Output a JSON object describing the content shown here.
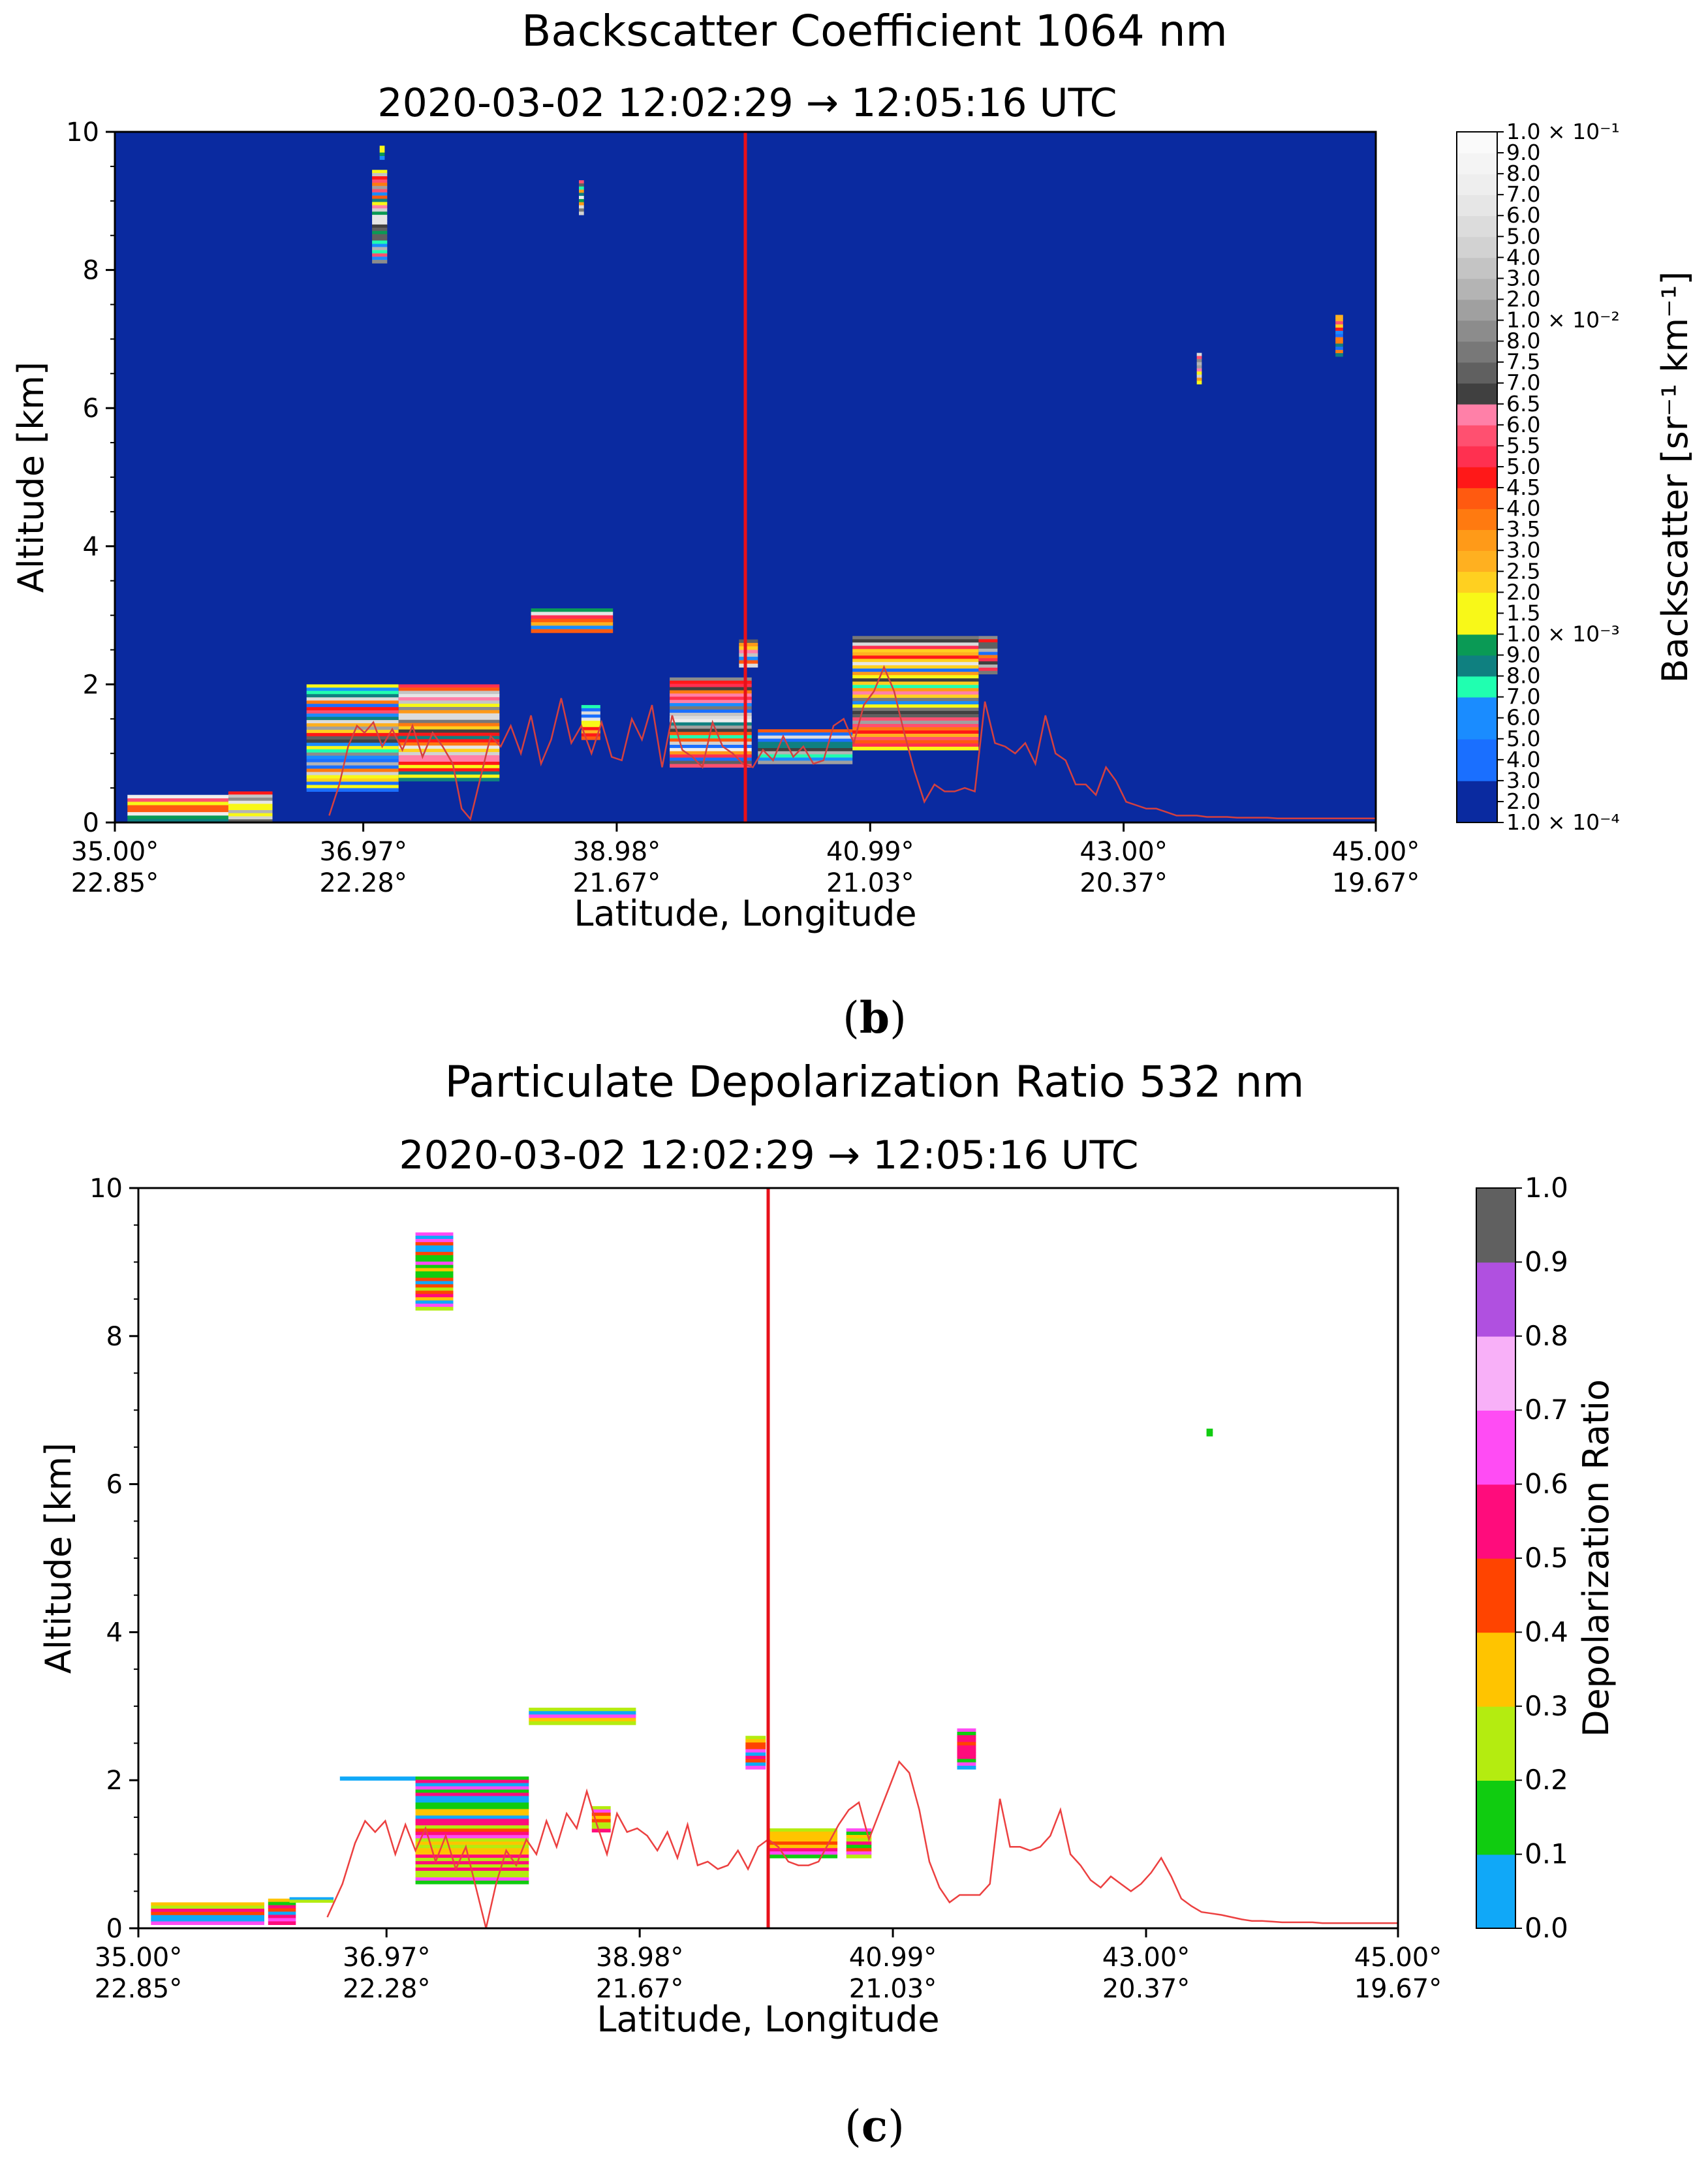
{
  "chart_data": [
    {
      "type": "heatmap",
      "panel_label": "b",
      "title": "Backscatter Coefficient 1064 nm",
      "subtitle": "2020-03-02 12:02:29 → 12:05:16 UTC",
      "xlabel": "Latitude, Longitude",
      "ylabel": "Altitude [km]",
      "xlim": [
        35.0,
        45.0
      ],
      "ylim": [
        0,
        10
      ],
      "yticks": [
        0,
        2,
        4,
        6,
        8,
        10
      ],
      "xticks": [
        {
          "lat": 35.0,
          "label1": "35.00°",
          "label2": "22.85°"
        },
        {
          "lat": 36.97,
          "label1": "36.97°",
          "label2": "22.28°"
        },
        {
          "lat": 38.98,
          "label1": "38.98°",
          "label2": "21.67°"
        },
        {
          "lat": 40.99,
          "label1": "40.99°",
          "label2": "21.03°"
        },
        {
          "lat": 43.0,
          "label1": "43.00°",
          "label2": "20.37°"
        },
        {
          "lat": 45.0,
          "label1": "45.00°",
          "label2": "19.67°"
        }
      ],
      "background_color": "#0a2aa0",
      "marker_line": {
        "lat": 40.0,
        "color": "#e8101a"
      },
      "colorbar": {
        "label": "Backscatter [sr⁻¹ km⁻¹]",
        "ticks": [
          "1.0 × 10⁻⁴",
          "2.0",
          "3.0",
          "4.0",
          "5.0",
          "6.0",
          "7.0",
          "8.0",
          "9.0",
          "1.0 × 10⁻³",
          "1.5",
          "2.0",
          "2.5",
          "3.0",
          "3.5",
          "4.0",
          "4.5",
          "5.0",
          "5.5",
          "6.0",
          "6.5",
          "7.0",
          "7.5",
          "8.0",
          "1.0 × 10⁻²",
          "2.0",
          "3.0",
          "4.0",
          "5.0",
          "6.0",
          "7.0",
          "8.0",
          "9.0",
          "1.0 × 10⁻¹"
        ],
        "colors": [
          "#0a2aa0",
          "#0a2aa0",
          "#1a6fff",
          "#1a6fff",
          "#1a8cff",
          "#1a8cff",
          "#20ffb0",
          "#0f8080",
          "#0a9a55",
          "#f8f818",
          "#f8f818",
          "#ffd020",
          "#ffb020",
          "#ff9a18",
          "#ff7a10",
          "#ff5a10",
          "#ff1818",
          "#ff3050",
          "#ff5070",
          "#ff80a8",
          "#404040",
          "#606060",
          "#787878",
          "#8c8c8c",
          "#a0a0a0",
          "#b4b4b4",
          "#c4c4c4",
          "#d2d2d2",
          "#dcdcdc",
          "#e6e6e6",
          "#eeeeee",
          "#f4f4f4",
          "#fafafa"
        ]
      },
      "ground_profile": {
        "color": "#d44040",
        "lat": [
          36.7,
          36.78,
          36.85,
          36.92,
          36.98,
          37.05,
          37.12,
          37.2,
          37.28,
          37.36,
          37.44,
          37.52,
          37.6,
          37.68,
          37.75,
          37.82,
          37.9,
          37.98,
          38.06,
          38.14,
          38.22,
          38.3,
          38.38,
          38.46,
          38.54,
          38.62,
          38.7,
          38.78,
          38.86,
          38.94,
          39.02,
          39.1,
          39.18,
          39.26,
          39.34,
          39.42,
          39.5,
          39.58,
          39.66,
          39.74,
          39.82,
          39.9,
          39.98,
          40.06,
          40.14,
          40.22,
          40.3,
          40.38,
          40.46,
          40.54,
          40.62,
          40.7,
          40.78,
          40.86,
          40.94,
          41.02,
          41.1,
          41.18,
          41.26,
          41.34,
          41.42,
          41.5,
          41.58,
          41.66,
          41.74,
          41.82,
          41.9,
          41.98,
          42.06,
          42.14,
          42.22,
          42.3,
          42.38,
          42.46,
          42.54,
          42.62,
          42.7,
          42.78,
          42.86,
          42.94,
          43.02,
          43.1,
          43.18,
          43.26,
          43.34,
          43.42,
          43.5,
          43.58,
          43.66,
          43.74,
          43.82,
          43.9,
          43.98,
          44.06,
          44.14,
          44.22,
          44.3,
          44.38,
          44.46,
          44.54,
          44.62,
          44.7,
          44.78,
          44.86,
          44.94,
          45.0
        ],
        "alt": [
          0.1,
          0.55,
          1.1,
          1.4,
          1.3,
          1.45,
          1.1,
          1.35,
          1.05,
          1.4,
          0.95,
          1.3,
          1.1,
          0.85,
          0.2,
          0.05,
          0.65,
          1.25,
          1.1,
          1.4,
          1.0,
          1.55,
          0.85,
          1.2,
          1.8,
          1.15,
          1.4,
          1.0,
          1.45,
          0.95,
          0.9,
          1.5,
          1.2,
          1.7,
          0.8,
          1.55,
          1.05,
          0.95,
          0.8,
          1.45,
          1.1,
          1.0,
          0.85,
          0.8,
          1.05,
          0.9,
          1.25,
          0.95,
          1.1,
          0.85,
          0.9,
          1.4,
          1.5,
          1.15,
          1.7,
          1.9,
          2.25,
          1.9,
          1.3,
          0.75,
          0.3,
          0.55,
          0.45,
          0.45,
          0.5,
          0.45,
          1.75,
          1.15,
          1.1,
          1.0,
          1.15,
          0.85,
          1.55,
          1.0,
          0.9,
          0.55,
          0.55,
          0.4,
          0.8,
          0.6,
          0.3,
          0.25,
          0.2,
          0.2,
          0.15,
          0.1,
          0.1,
          0.1,
          0.08,
          0.08,
          0.08,
          0.07,
          0.07,
          0.07,
          0.07,
          0.06,
          0.06,
          0.06,
          0.06,
          0.06,
          0.06,
          0.06,
          0.06,
          0.06,
          0.06,
          0.06
        ]
      },
      "features": [
        {
          "lat": [
            35.1,
            36.1
          ],
          "alt": [
            0.0,
            0.4
          ]
        },
        {
          "lat": [
            35.9,
            36.25
          ],
          "alt": [
            0.0,
            0.45
          ]
        },
        {
          "lat": [
            36.52,
            37.25
          ],
          "alt": [
            0.45,
            2.0
          ]
        },
        {
          "lat": [
            37.25,
            38.05
          ],
          "alt": [
            0.6,
            2.0
          ]
        },
        {
          "lat": [
            37.04,
            37.16
          ],
          "alt": [
            8.1,
            9.45
          ]
        },
        {
          "lat": [
            37.1,
            37.14
          ],
          "alt": [
            9.6,
            9.8
          ]
        },
        {
          "lat": [
            38.68,
            38.72
          ],
          "alt": [
            8.8,
            9.3
          ]
        },
        {
          "lat": [
            38.3,
            38.95
          ],
          "alt": [
            2.75,
            3.1
          ]
        },
        {
          "lat": [
            38.7,
            38.85
          ],
          "alt": [
            1.2,
            1.7
          ]
        },
        {
          "lat": [
            39.4,
            40.05
          ],
          "alt": [
            0.8,
            2.1
          ]
        },
        {
          "lat": [
            39.95,
            40.1
          ],
          "alt": [
            2.25,
            2.65
          ]
        },
        {
          "lat": [
            40.1,
            40.85
          ],
          "alt": [
            0.85,
            1.35
          ]
        },
        {
          "lat": [
            40.85,
            41.85
          ],
          "alt": [
            1.05,
            2.7
          ]
        },
        {
          "lat": [
            41.85,
            42.0
          ],
          "alt": [
            2.15,
            2.7
          ]
        },
        {
          "lat": [
            43.58,
            43.62
          ],
          "alt": [
            6.35,
            6.8
          ]
        },
        {
          "lat": [
            44.68,
            44.74
          ],
          "alt": [
            6.75,
            7.35
          ]
        }
      ]
    },
    {
      "type": "heatmap",
      "panel_label": "c",
      "title": "Particulate Depolarization Ratio 532 nm",
      "subtitle": "2020-03-02 12:02:29 → 12:05:16 UTC",
      "xlabel": "Latitude, Longitude",
      "ylabel": "Altitude [km]",
      "xlim": [
        35.0,
        45.0
      ],
      "ylim": [
        0,
        10
      ],
      "yticks": [
        0,
        2,
        4,
        6,
        8,
        10
      ],
      "xticks": [
        {
          "lat": 35.0,
          "label1": "35.00°",
          "label2": "22.85°"
        },
        {
          "lat": 36.97,
          "label1": "36.97°",
          "label2": "22.28°"
        },
        {
          "lat": 38.98,
          "label1": "38.98°",
          "label2": "21.67°"
        },
        {
          "lat": 40.99,
          "label1": "40.99°",
          "label2": "21.03°"
        },
        {
          "lat": 43.0,
          "label1": "43.00°",
          "label2": "20.37°"
        },
        {
          "lat": 45.0,
          "label1": "45.00°",
          "label2": "19.67°"
        }
      ],
      "background_color": "#ffffff",
      "marker_line": {
        "lat": 40.0,
        "color": "#e8101a"
      },
      "colorbar": {
        "label": "Depolarization Ratio",
        "ticks": [
          "0.0",
          "0.1",
          "0.2",
          "0.3",
          "0.4",
          "0.5",
          "0.6",
          "0.7",
          "0.8",
          "0.9",
          "1.0"
        ],
        "colors": [
          "#10a8f8",
          "#10cc10",
          "#b4ec10",
          "#ffc400",
          "#ff4400",
          "#ff0c7c",
          "#ff4cf4",
          "#f8b0f8",
          "#b050e0",
          "#606060"
        ]
      },
      "ground_profile": {
        "color": "#ec4040",
        "lat": [
          36.5,
          36.62,
          36.72,
          36.8,
          36.88,
          36.96,
          37.04,
          37.12,
          37.2,
          37.28,
          37.36,
          37.44,
          37.52,
          37.6,
          37.68,
          37.76,
          37.84,
          37.92,
          38.0,
          38.08,
          38.16,
          38.24,
          38.32,
          38.4,
          38.48,
          38.56,
          38.64,
          38.72,
          38.8,
          38.88,
          38.96,
          39.04,
          39.12,
          39.2,
          39.28,
          39.36,
          39.44,
          39.52,
          39.6,
          39.68,
          39.76,
          39.84,
          39.92,
          40.0,
          40.08,
          40.16,
          40.24,
          40.32,
          40.4,
          40.48,
          40.56,
          40.64,
          40.72,
          40.8,
          40.88,
          40.96,
          41.04,
          41.12,
          41.2,
          41.28,
          41.36,
          41.44,
          41.52,
          41.6,
          41.68,
          41.76,
          41.84,
          41.92,
          42.0,
          42.08,
          42.16,
          42.24,
          42.32,
          42.4,
          42.48,
          42.56,
          42.64,
          42.72,
          42.8,
          42.88,
          42.96,
          43.04,
          43.12,
          43.2,
          43.28,
          43.36,
          43.44,
          43.52,
          43.6,
          43.68,
          43.76,
          43.84,
          43.92,
          44.0,
          44.08,
          44.16,
          44.24,
          44.32,
          44.4,
          44.48,
          44.56,
          44.64,
          44.72,
          44.8,
          44.88,
          44.96,
          45.0
        ],
        "alt": [
          0.15,
          0.6,
          1.15,
          1.45,
          1.3,
          1.45,
          1.0,
          1.4,
          1.05,
          1.35,
          0.9,
          1.25,
          0.8,
          1.1,
          0.55,
          0.0,
          0.6,
          1.05,
          0.85,
          1.2,
          1.0,
          1.45,
          1.1,
          1.55,
          1.35,
          1.85,
          1.4,
          1.0,
          1.55,
          1.3,
          1.35,
          1.25,
          1.05,
          1.3,
          0.95,
          1.4,
          0.85,
          0.9,
          0.8,
          0.85,
          1.05,
          0.8,
          1.1,
          1.2,
          1.1,
          0.9,
          0.85,
          0.85,
          0.9,
          1.15,
          1.4,
          1.6,
          1.7,
          1.2,
          1.55,
          1.9,
          2.25,
          2.1,
          1.6,
          0.9,
          0.55,
          0.35,
          0.45,
          0.45,
          0.45,
          0.6,
          1.75,
          1.1,
          1.1,
          1.05,
          1.1,
          1.25,
          1.6,
          1.0,
          0.85,
          0.65,
          0.55,
          0.7,
          0.6,
          0.5,
          0.6,
          0.75,
          0.95,
          0.7,
          0.4,
          0.3,
          0.22,
          0.2,
          0.18,
          0.15,
          0.12,
          0.1,
          0.1,
          0.09,
          0.08,
          0.08,
          0.08,
          0.08,
          0.07,
          0.07,
          0.07,
          0.07,
          0.07,
          0.07,
          0.07,
          0.07,
          0.07
        ]
      },
      "features": [
        {
          "lat": [
            35.1,
            36.0
          ],
          "alt": [
            0.05,
            0.35
          ]
        },
        {
          "lat": [
            36.03,
            36.25
          ],
          "alt": [
            0.05,
            0.4
          ]
        },
        {
          "lat": [
            36.2,
            36.55
          ],
          "alt": [
            0.35,
            0.42
          ]
        },
        {
          "lat": [
            36.6,
            37.8
          ],
          "alt": [
            2.0,
            2.05
          ]
        },
        {
          "lat": [
            37.2,
            38.1
          ],
          "alt": [
            0.6,
            2.05
          ]
        },
        {
          "lat": [
            37.2,
            37.5
          ],
          "alt": [
            8.35,
            9.4
          ]
        },
        {
          "lat": [
            38.1,
            38.95
          ],
          "alt": [
            2.75,
            2.98
          ]
        },
        {
          "lat": [
            38.6,
            38.75
          ],
          "alt": [
            1.3,
            1.65
          ]
        },
        {
          "lat": [
            39.82,
            39.98
          ],
          "alt": [
            2.15,
            2.6
          ]
        },
        {
          "lat": [
            40.0,
            40.55
          ],
          "alt": [
            0.95,
            1.35
          ]
        },
        {
          "lat": [
            40.62,
            40.82
          ],
          "alt": [
            0.95,
            1.35
          ]
        },
        {
          "lat": [
            41.5,
            41.65
          ],
          "alt": [
            2.15,
            2.7
          ]
        },
        {
          "lat": [
            43.48,
            43.53
          ],
          "alt": [
            6.65,
            6.75
          ]
        }
      ]
    }
  ]
}
